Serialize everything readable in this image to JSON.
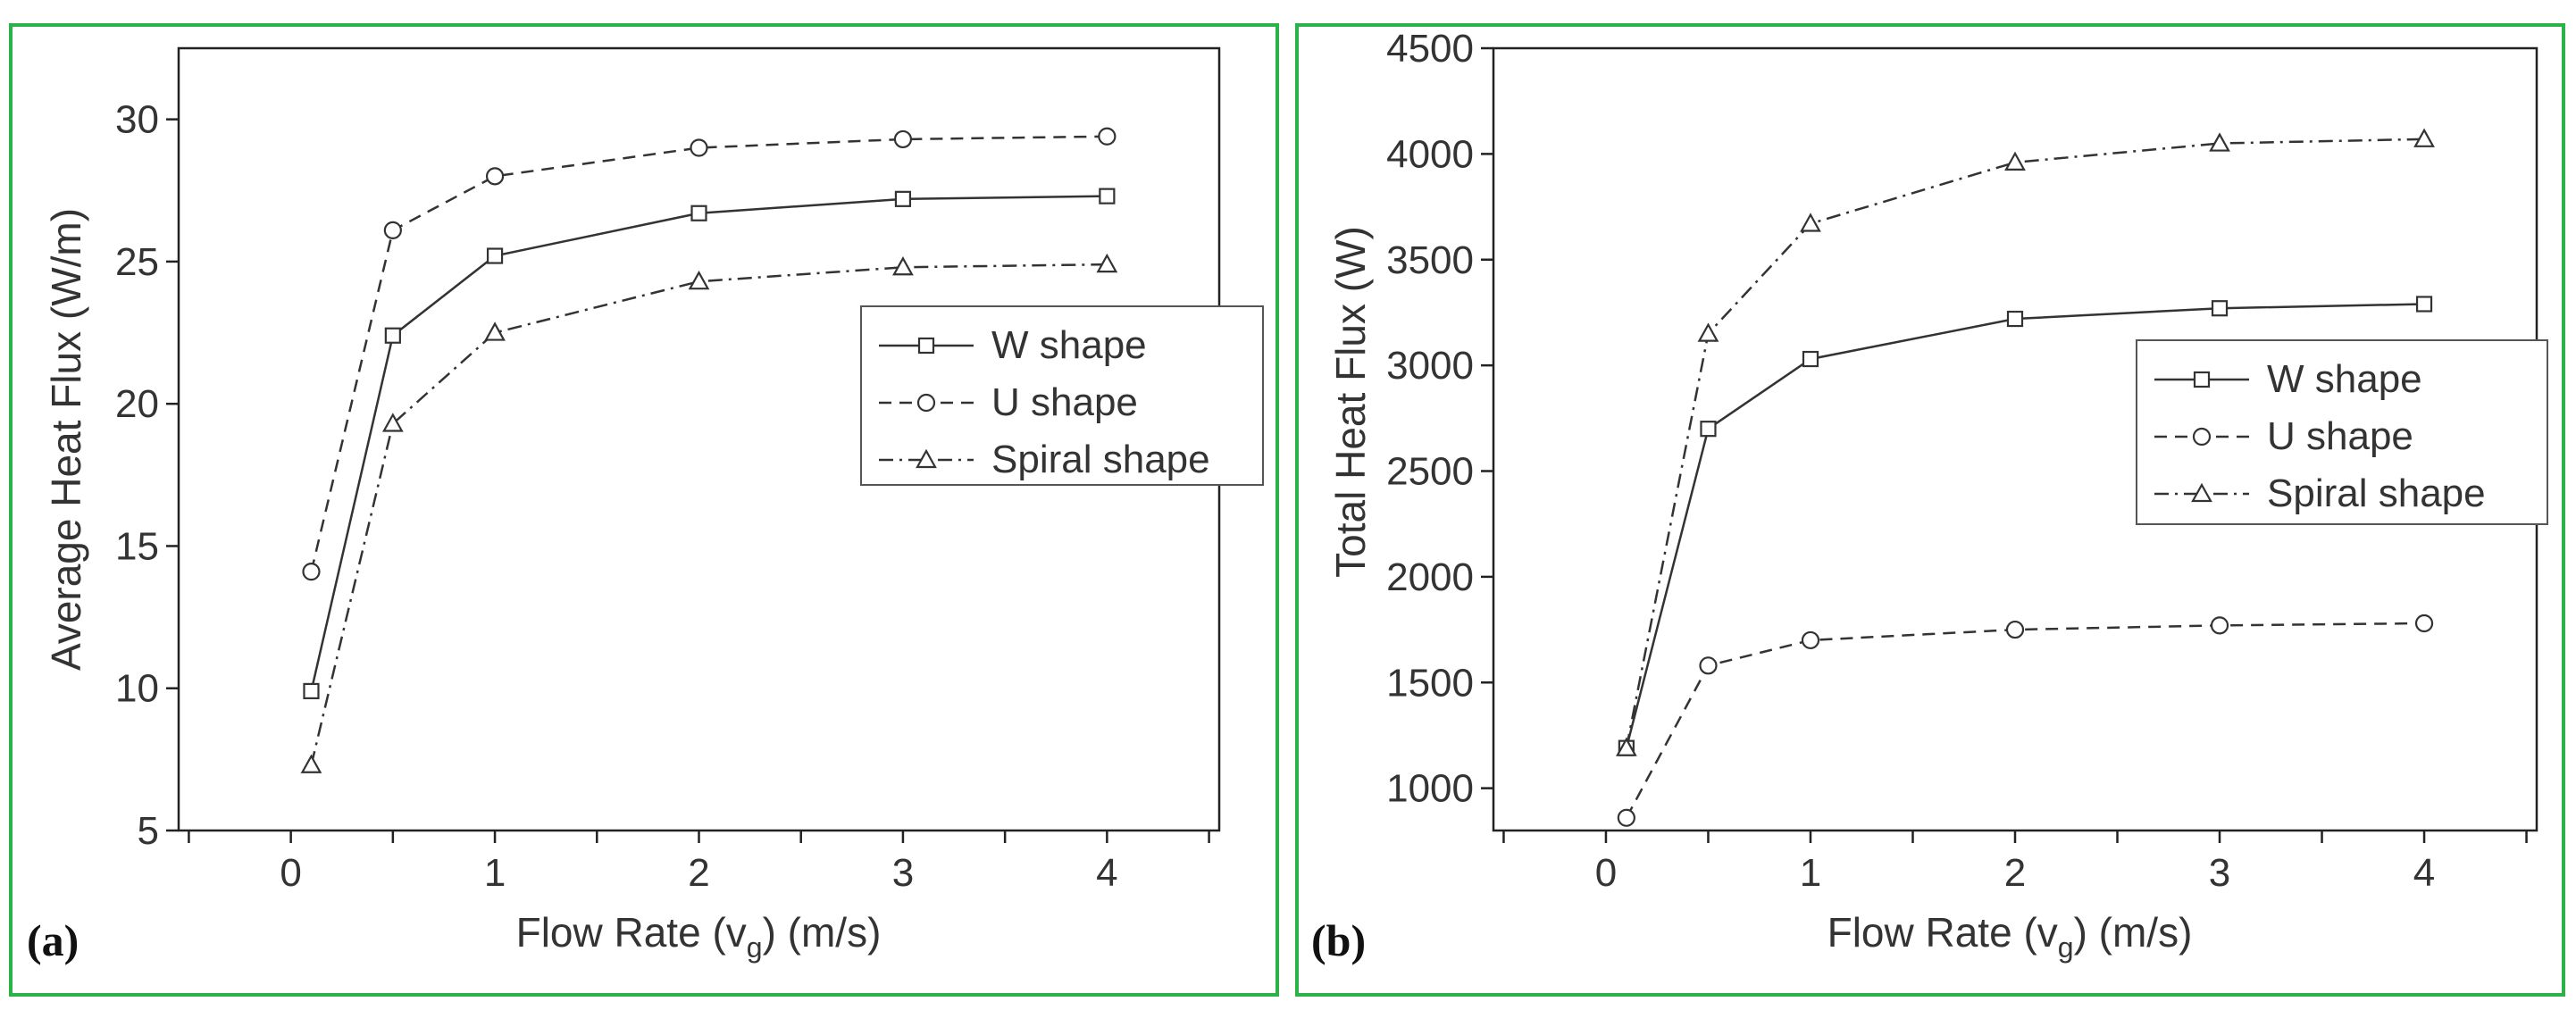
{
  "chart_data": [
    {
      "type": "line",
      "panel_label": "(a)",
      "xlabel_main": "Flow Rate (v",
      "xlabel_sub": "g",
      "xlabel_tail": ") (m/s)",
      "ylabel": "Average Heat Flux (W/m)",
      "x": [
        0.1,
        0.5,
        1,
        2,
        3,
        4
      ],
      "xlim": [
        -0.55,
        4.55
      ],
      "ylim": [
        5,
        32.5
      ],
      "xticks": [
        0,
        1,
        2,
        3,
        4
      ],
      "xtick_labels": [
        "0",
        "1",
        "2",
        "3",
        "4"
      ],
      "yticks": [
        5,
        10,
        15,
        20,
        25,
        30
      ],
      "ytick_labels": [
        "5",
        "10",
        "15",
        "20",
        "25",
        "30"
      ],
      "x_major_ticks": [
        -0.5,
        0,
        0.5,
        1,
        1.5,
        2,
        2.5,
        3,
        3.5,
        4,
        4.5
      ],
      "legend_position": "right-middle",
      "series": [
        {
          "name": "W shape",
          "marker": "square",
          "dash": "solid",
          "values": [
            9.9,
            22.4,
            25.2,
            26.7,
            27.2,
            27.3
          ]
        },
        {
          "name": "U shape",
          "marker": "circle",
          "dash": "dashed",
          "values": [
            14.1,
            26.1,
            28.0,
            29.0,
            29.3,
            29.4
          ]
        },
        {
          "name": "Spiral shape",
          "marker": "triangle",
          "dash": "dashdot",
          "values": [
            7.3,
            19.3,
            22.5,
            24.3,
            24.8,
            24.9
          ]
        }
      ]
    },
    {
      "type": "line",
      "panel_label": "(b)",
      "xlabel_main": "Flow Rate (v",
      "xlabel_sub": "g",
      "xlabel_tail": ") (m/s)",
      "ylabel": "Total Heat Flux (W)",
      "x": [
        0.1,
        0.5,
        1,
        2,
        3,
        4
      ],
      "xlim": [
        -0.55,
        4.55
      ],
      "ylim": [
        800,
        4500
      ],
      "xticks": [
        0,
        1,
        2,
        3,
        4
      ],
      "xtick_labels": [
        "0",
        "1",
        "2",
        "3",
        "4"
      ],
      "yticks": [
        1000,
        1500,
        2000,
        2500,
        3000,
        3500,
        4000,
        4500
      ],
      "ytick_labels": [
        "1000",
        "1500",
        "2000",
        "2500",
        "3000",
        "3500",
        "4000",
        "4500"
      ],
      "x_major_ticks": [
        -0.5,
        0,
        0.5,
        1,
        1.5,
        2,
        2.5,
        3,
        3.5,
        4,
        4.5
      ],
      "legend_position": "right-middle",
      "series": [
        {
          "name": "W shape",
          "marker": "square",
          "dash": "solid",
          "values": [
            1190,
            2700,
            3030,
            3220,
            3270,
            3290
          ]
        },
        {
          "name": "U shape",
          "marker": "circle",
          "dash": "dashed",
          "values": [
            860,
            1580,
            1700,
            1750,
            1770,
            1780
          ]
        },
        {
          "name": "Spiral shape",
          "marker": "triangle",
          "dash": "dashdot",
          "values": [
            1190,
            3150,
            3670,
            3960,
            4050,
            4070
          ]
        }
      ]
    }
  ],
  "colors": {
    "frame": "#2bb34a",
    "ink": "#333333"
  }
}
